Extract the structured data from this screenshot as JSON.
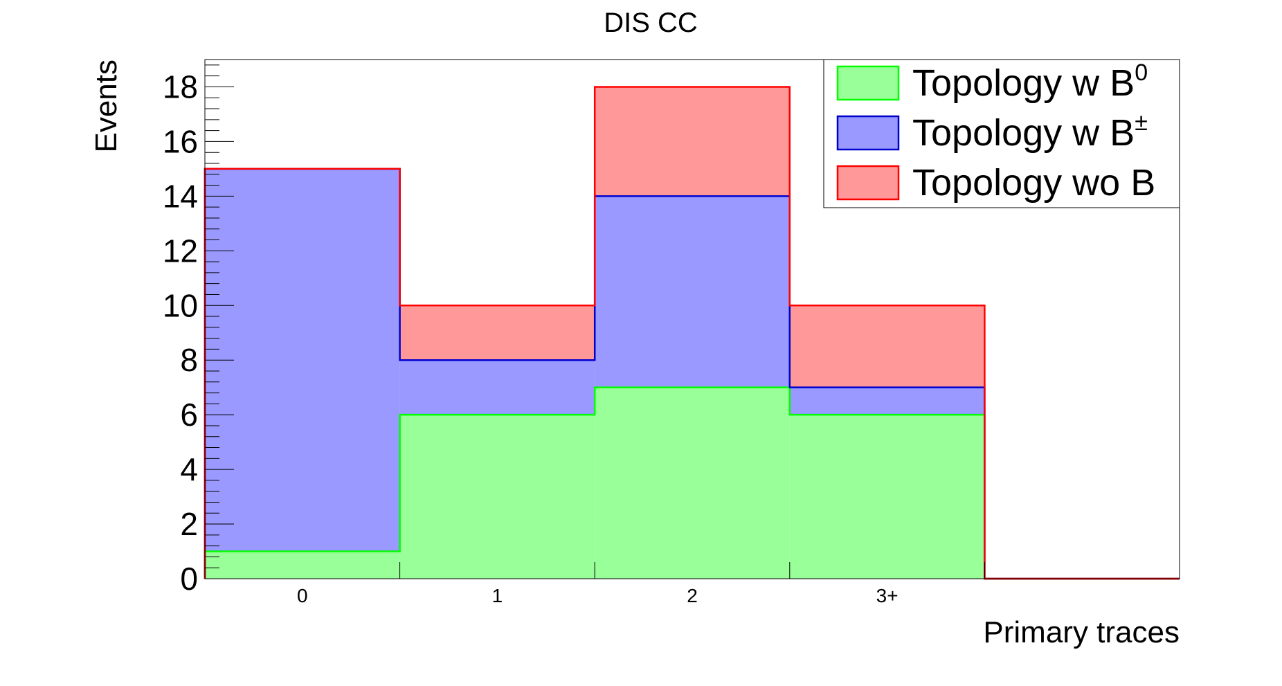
{
  "chart_data": {
    "type": "bar",
    "stacked": true,
    "title": "DIS CC",
    "xlabel": "Primary traces",
    "ylabel": "Events",
    "categories": [
      "0",
      "1",
      "2",
      "3+",
      ""
    ],
    "ylim": [
      0,
      19
    ],
    "yticks": [
      "0",
      "2",
      "4",
      "6",
      "8",
      "10",
      "12",
      "14",
      "16",
      "18"
    ],
    "grid": false,
    "legend_position": "top-right",
    "series": [
      {
        "name": "Topology w B",
        "superscript": "0",
        "color": "#99ff99",
        "edge": "#00ff00",
        "values": [
          1,
          6,
          7,
          6,
          0
        ]
      },
      {
        "name": "Topology w B",
        "superscript": "±",
        "color": "#9999ff",
        "edge": "#0000cc",
        "values": [
          14,
          2,
          7,
          1,
          0
        ]
      },
      {
        "name": "Topology wo B",
        "superscript": "",
        "color": "#ff9999",
        "edge": "#ff0000",
        "values": [
          0,
          2,
          4,
          3,
          0
        ]
      }
    ]
  }
}
